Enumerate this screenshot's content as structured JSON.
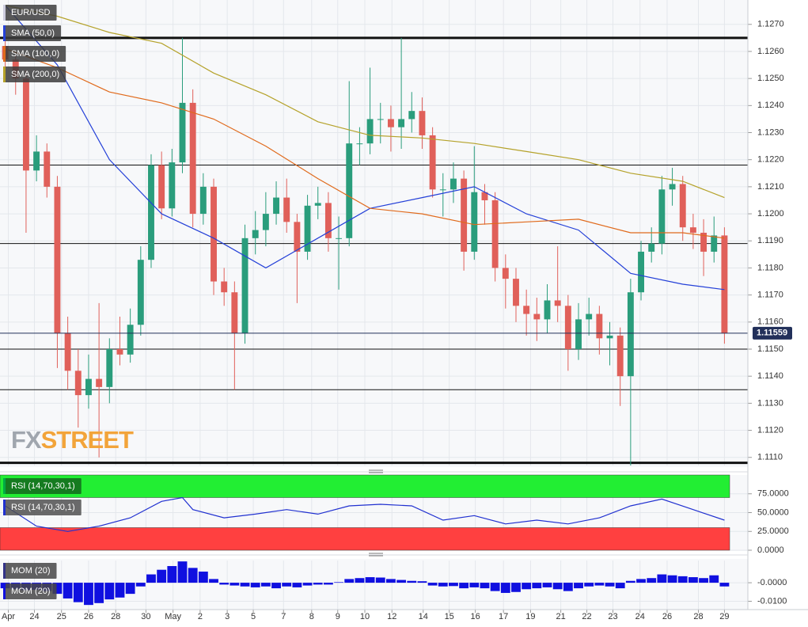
{
  "chart_data": [
    {
      "type": "candlestick",
      "title": "EUR/USD",
      "up_color": "#2a9d7c",
      "down_color": "#e0605a",
      "xlim": [
        -0.5,
        69.5
      ],
      "xticks": [
        {
          "value": 0.3,
          "label": "Apr"
        },
        {
          "value": 2.8,
          "label": "24"
        },
        {
          "value": 5.4,
          "label": "25"
        },
        {
          "value": 8.0,
          "label": "26"
        },
        {
          "value": 10.6,
          "label": "28"
        },
        {
          "value": 13.5,
          "label": "30"
        },
        {
          "value": 16.1,
          "label": "May"
        },
        {
          "value": 18.7,
          "label": "2"
        },
        {
          "value": 21.3,
          "label": "3"
        },
        {
          "value": 23.8,
          "label": "5"
        },
        {
          "value": 26.7,
          "label": "7"
        },
        {
          "value": 29.4,
          "label": "8"
        },
        {
          "value": 31.9,
          "label": "9"
        },
        {
          "value": 34.5,
          "label": "10"
        },
        {
          "value": 37.1,
          "label": "12"
        },
        {
          "value": 40.1,
          "label": "14"
        },
        {
          "value": 42.6,
          "label": "15"
        },
        {
          "value": 45.1,
          "label": "16"
        },
        {
          "value": 47.8,
          "label": "17"
        },
        {
          "value": 50.4,
          "label": "19"
        },
        {
          "value": 53.3,
          "label": "21"
        },
        {
          "value": 55.8,
          "label": "22"
        },
        {
          "value": 58.3,
          "label": "23"
        },
        {
          "value": 60.9,
          "label": "24"
        },
        {
          "value": 63.5,
          "label": "26"
        },
        {
          "value": 66.5,
          "label": "28"
        },
        {
          "value": 69.0,
          "label": "29"
        }
      ],
      "ylim": [
        1.1107,
        1.1279
      ],
      "yticks": [
        {
          "value": 1.111,
          "label": "1.1110"
        },
        {
          "value": 1.112,
          "label": "1.1120"
        },
        {
          "value": 1.113,
          "label": "1.1130"
        },
        {
          "value": 1.114,
          "label": "1.1140"
        },
        {
          "value": 1.115,
          "label": "1.1150"
        },
        {
          "value": 1.116,
          "label": "1.1160"
        },
        {
          "value": 1.117,
          "label": "1.1170"
        },
        {
          "value": 1.118,
          "label": "1.1180"
        },
        {
          "value": 1.119,
          "label": "1.1190"
        },
        {
          "value": 1.12,
          "label": "1.1200"
        },
        {
          "value": 1.121,
          "label": "1.1210"
        },
        {
          "value": 1.122,
          "label": "1.1220"
        },
        {
          "value": 1.123,
          "label": "1.1230"
        },
        {
          "value": 1.124,
          "label": "1.1240"
        },
        {
          "value": 1.125,
          "label": "1.1250"
        },
        {
          "value": 1.126,
          "label": "1.1260"
        },
        {
          "value": 1.127,
          "label": "1.1270"
        }
      ],
      "grid": true,
      "open": [
        1.1262,
        1.1257,
        1.125,
        1.1216,
        1.1223,
        1.121,
        1.1156,
        1.1142,
        1.1133,
        1.1139,
        1.1136,
        1.115,
        1.1148,
        1.1159,
        1.1183,
        1.1218,
        1.1202,
        1.1219,
        1.1241,
        1.12,
        1.121,
        1.1175,
        1.1171,
        1.1156,
        1.1191,
        1.1194,
        1.12,
        1.1206,
        1.1197,
        1.1186,
        1.1203,
        1.1204,
        1.1191,
        1.1191,
        1.1226,
        1.1226,
        1.1235,
        1.1235,
        1.1232,
        1.1235,
        1.1238,
        1.1229,
        1.1209,
        1.1209,
        1.1213,
        1.1186,
        1.1208,
        1.1205,
        1.118,
        1.1176,
        1.1166,
        1.1163,
        1.1161,
        1.1168,
        1.1166,
        1.115,
        1.1161,
        1.1163,
        1.1154,
        1.1155,
        1.114,
        1.1171,
        1.1186,
        1.1189,
        1.1209,
        1.1211,
        1.1195,
        1.1193,
        1.1186,
        1.1192
      ],
      "high": [
        1.1268,
        1.126,
        1.1253,
        1.1229,
        1.1226,
        1.1214,
        1.1162,
        1.115,
        1.1148,
        1.1167,
        1.1154,
        1.1162,
        1.1165,
        1.1188,
        1.1222,
        1.1223,
        1.1224,
        1.1265,
        1.1246,
        1.1215,
        1.1213,
        1.118,
        1.1175,
        1.1196,
        1.1201,
        1.1208,
        1.1212,
        1.1213,
        1.12,
        1.1207,
        1.121,
        1.1208,
        1.1199,
        1.1249,
        1.1232,
        1.1254,
        1.1241,
        1.124,
        1.1265,
        1.1245,
        1.1243,
        1.1232,
        1.1215,
        1.1219,
        1.1216,
        1.1225,
        1.1211,
        1.1208,
        1.1185,
        1.118,
        1.1172,
        1.1169,
        1.1174,
        1.1188,
        1.117,
        1.1167,
        1.1169,
        1.1166,
        1.116,
        1.1158,
        1.1176,
        1.119,
        1.1195,
        1.1214,
        1.1217,
        1.1214,
        1.12,
        1.1198,
        1.1199,
        1.1195
      ],
      "low": [
        1.1252,
        1.1244,
        1.1193,
        1.1212,
        1.1206,
        1.1143,
        1.1135,
        1.1121,
        1.1128,
        1.111,
        1.113,
        1.1144,
        1.1145,
        1.1155,
        1.118,
        1.1198,
        1.1199,
        1.1215,
        1.1195,
        1.1196,
        1.117,
        1.1166,
        1.1135,
        1.1152,
        1.1185,
        1.1188,
        1.1196,
        1.1193,
        1.1167,
        1.1183,
        1.1198,
        1.1186,
        1.1172,
        1.1188,
        1.1218,
        1.1222,
        1.1226,
        1.1223,
        1.1224,
        1.123,
        1.1224,
        1.1206,
        1.1199,
        1.1204,
        1.1179,
        1.1183,
        1.1196,
        1.1175,
        1.1165,
        1.116,
        1.1155,
        1.1153,
        1.1156,
        1.116,
        1.1142,
        1.1146,
        1.1155,
        1.1148,
        1.1144,
        1.1129,
        1.1107,
        1.1168,
        1.1182,
        1.1185,
        1.1203,
        1.119,
        1.1187,
        1.1177,
        1.1182,
        1.1152
      ],
      "close": [
        1.1257,
        1.125,
        1.1216,
        1.1223,
        1.121,
        1.1156,
        1.1142,
        1.1133,
        1.1139,
        1.1136,
        1.115,
        1.1148,
        1.1159,
        1.1183,
        1.1218,
        1.1202,
        1.1219,
        1.1241,
        1.12,
        1.121,
        1.1175,
        1.1171,
        1.1156,
        1.1191,
        1.1194,
        1.12,
        1.1206,
        1.1197,
        1.1186,
        1.1203,
        1.1204,
        1.1191,
        1.1191,
        1.1226,
        1.1226,
        1.1235,
        1.1235,
        1.1232,
        1.1235,
        1.1238,
        1.1229,
        1.1209,
        1.1209,
        1.1213,
        1.1186,
        1.1208,
        1.1205,
        1.118,
        1.1176,
        1.1166,
        1.1163,
        1.1161,
        1.1168,
        1.1166,
        1.115,
        1.1161,
        1.1163,
        1.1154,
        1.1155,
        1.114,
        1.1171,
        1.1186,
        1.1189,
        1.1209,
        1.1211,
        1.1195,
        1.1193,
        1.1186,
        1.1192,
        1.1156
      ],
      "series": [
        {
          "name": "SMA (50,0)",
          "color": "#2440d8",
          "x": [
            0,
            5,
            10,
            15,
            20,
            25,
            30,
            35,
            40,
            45,
            50,
            55,
            60,
            65,
            69
          ],
          "values": [
            1.1277,
            1.1255,
            1.122,
            1.12,
            1.1191,
            1.118,
            1.1191,
            1.1202,
            1.1206,
            1.121,
            1.12,
            1.1194,
            1.1178,
            1.1174,
            1.1172
          ]
        },
        {
          "name": "SMA (100,0)",
          "color": "#e06a1c",
          "x": [
            0,
            5,
            10,
            15,
            20,
            25,
            30,
            35,
            40,
            45,
            50,
            55,
            60,
            65,
            69
          ],
          "values": [
            1.1261,
            1.1254,
            1.1245,
            1.1241,
            1.1235,
            1.1225,
            1.1213,
            1.1202,
            1.12,
            1.1196,
            1.1197,
            1.1198,
            1.1193,
            1.1193,
            1.1191
          ]
        },
        {
          "name": "SMA (200,0)",
          "color": "#b5a22a",
          "x": [
            0,
            5,
            10,
            15,
            20,
            25,
            30,
            35,
            40,
            45,
            50,
            55,
            60,
            65,
            69
          ],
          "values": [
            1.1277,
            1.1273,
            1.1267,
            1.1263,
            1.1252,
            1.1244,
            1.1234,
            1.1229,
            1.1228,
            1.1226,
            1.1223,
            1.122,
            1.1215,
            1.1212,
            1.1206
          ]
        }
      ],
      "hlines": [
        1.1265,
        1.1218,
        1.1189,
        1.115,
        1.1135,
        1.1108
      ],
      "last_price": {
        "value": 1.11559,
        "label": "1.11559"
      },
      "watermark": [
        "FX",
        "STREET"
      ]
    },
    {
      "type": "line",
      "title": "RSI (14,70,30,1)",
      "ylim": [
        0,
        100
      ],
      "yticks": [
        {
          "value": 0,
          "label": "0.0000"
        },
        {
          "value": 25,
          "label": "25.0000"
        },
        {
          "value": 50,
          "label": "50.0000"
        },
        {
          "value": 75,
          "label": "75.0000"
        }
      ],
      "upper_band": 70,
      "lower_band": 30,
      "upper_color": "#22ee33",
      "lower_color": "#ff4040",
      "series": [
        {
          "name": "RSI (14,70,30,1)",
          "color": "#2030d0",
          "x": [
            0,
            3,
            6,
            9,
            12,
            15,
            17,
            18,
            21,
            24,
            27,
            30,
            33,
            36,
            39,
            42,
            45,
            48,
            51,
            54,
            57,
            60,
            63,
            66,
            69
          ],
          "values": [
            59,
            32,
            25,
            32,
            43,
            65,
            70,
            54,
            43,
            48,
            54,
            48,
            59,
            61,
            59,
            40,
            46,
            35,
            40,
            35,
            43,
            59,
            68,
            54,
            40
          ]
        }
      ]
    },
    {
      "type": "bar",
      "title": "MOM (20)",
      "ylim": [
        -0.0145,
        0.012
      ],
      "yticks": [
        {
          "value": -0.01,
          "label": "-0.0100"
        },
        {
          "value": 0,
          "label": "-0.0000"
        }
      ],
      "series": [
        {
          "name": "MOM (20)",
          "color": "#1010e0",
          "values": [
            -0.003,
            -0.0035,
            -0.004,
            -0.0038,
            -0.0045,
            -0.006,
            -0.0085,
            -0.0105,
            -0.012,
            -0.011,
            -0.009,
            -0.008,
            -0.006,
            -0.002,
            0.0045,
            0.007,
            0.009,
            0.0115,
            0.008,
            0.006,
            0.002,
            -0.001,
            -0.0015,
            -0.002,
            -0.0025,
            -0.002,
            -0.003,
            -0.002,
            -0.0025,
            -0.0015,
            -0.001,
            -0.001,
            0.0003,
            0.002,
            0.0025,
            0.003,
            0.0028,
            0.002,
            0.0015,
            0.001,
            0.0008,
            -0.0015,
            -0.002,
            -0.0018,
            -0.003,
            -0.0025,
            -0.003,
            -0.0045,
            -0.0055,
            -0.005,
            -0.0035,
            -0.003,
            -0.0025,
            -0.0035,
            -0.0045,
            -0.003,
            -0.002,
            -0.0015,
            -0.002,
            -0.003,
            0.001,
            0.002,
            0.0025,
            0.0045,
            0.004,
            0.0035,
            0.003,
            0.0025,
            0.004,
            -0.002
          ]
        }
      ]
    }
  ]
}
